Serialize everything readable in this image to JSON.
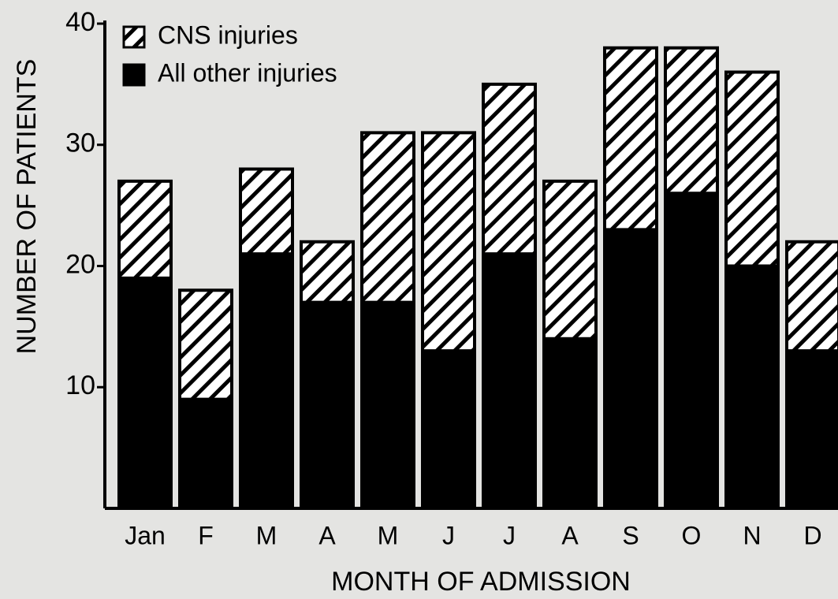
{
  "chart_data": {
    "type": "stacked_bar",
    "categories": [
      "Jan",
      "F",
      "M",
      "A",
      "M",
      "J",
      "J",
      "A",
      "S",
      "O",
      "N",
      "D"
    ],
    "series": [
      {
        "name": "CNS injuries",
        "color": "#ffffff",
        "hatch": true,
        "values": [
          8,
          9,
          7,
          5,
          14,
          18,
          14,
          13,
          15,
          12,
          16,
          9
        ]
      },
      {
        "name": "All other injuries",
        "color": "#000000",
        "hatch": false,
        "values": [
          19,
          9,
          21,
          17,
          17,
          13,
          21,
          14,
          23,
          26,
          20,
          13
        ]
      }
    ],
    "ylim": [
      0,
      40
    ],
    "yticks": [
      10,
      20,
      30,
      40
    ],
    "ylabel": "NUMBER OF PATIENTS",
    "xlabel": "MONTH OF ADMISSION"
  }
}
